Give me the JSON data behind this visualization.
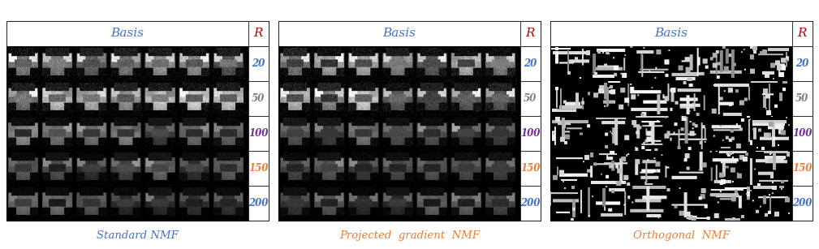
{
  "panel_titles": [
    "Basis",
    "Basis",
    "Basis"
  ],
  "r_label": "R",
  "r_values": [
    20,
    50,
    100,
    150,
    200
  ],
  "r_colors": {
    "20": "#4472C4",
    "50": "#808080",
    "100": "#7030A0",
    "150": "#ED7D31",
    "200": "#4472C4"
  },
  "method_labels": [
    "Standard NMF",
    "Projected  gradient  NMF",
    "Orthogonal  NMF"
  ],
  "method_colors": [
    "#4472C4",
    "#ED7D31",
    "#ED7D31"
  ],
  "basis_color": "#4472C4",
  "r_header_color": "#C00000",
  "n_rows": 5,
  "n_panels": 3,
  "bg_color": "#FFFFFF",
  "figsize": [
    10.09,
    3.07
  ],
  "dpi": 100
}
